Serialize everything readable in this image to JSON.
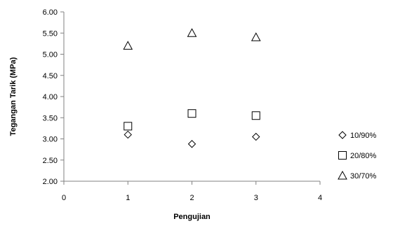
{
  "chart_data": {
    "type": "scatter",
    "title": "",
    "xlabel": "Pengujian",
    "ylabel": "Tegangan Tarik (MPa)",
    "xlim": [
      0,
      4
    ],
    "ylim": [
      2.0,
      6.0
    ],
    "x_ticks": [
      "0",
      "1",
      "2",
      "3",
      "4"
    ],
    "y_ticks": [
      "2.00",
      "2.50",
      "3.00",
      "3.50",
      "4.00",
      "4.50",
      "5.00",
      "5.50",
      "6.00"
    ],
    "grid": false,
    "legend_position": "right",
    "series": [
      {
        "name": "10/90%",
        "marker": "diamond",
        "x": [
          1,
          2,
          3
        ],
        "y": [
          3.1,
          2.88,
          3.05
        ]
      },
      {
        "name": "20/80%",
        "marker": "square",
        "x": [
          1,
          2,
          3
        ],
        "y": [
          3.3,
          3.6,
          3.55
        ]
      },
      {
        "name": "30/70%",
        "marker": "triangle",
        "x": [
          1,
          2,
          3
        ],
        "y": [
          5.2,
          5.5,
          5.4
        ]
      }
    ]
  }
}
